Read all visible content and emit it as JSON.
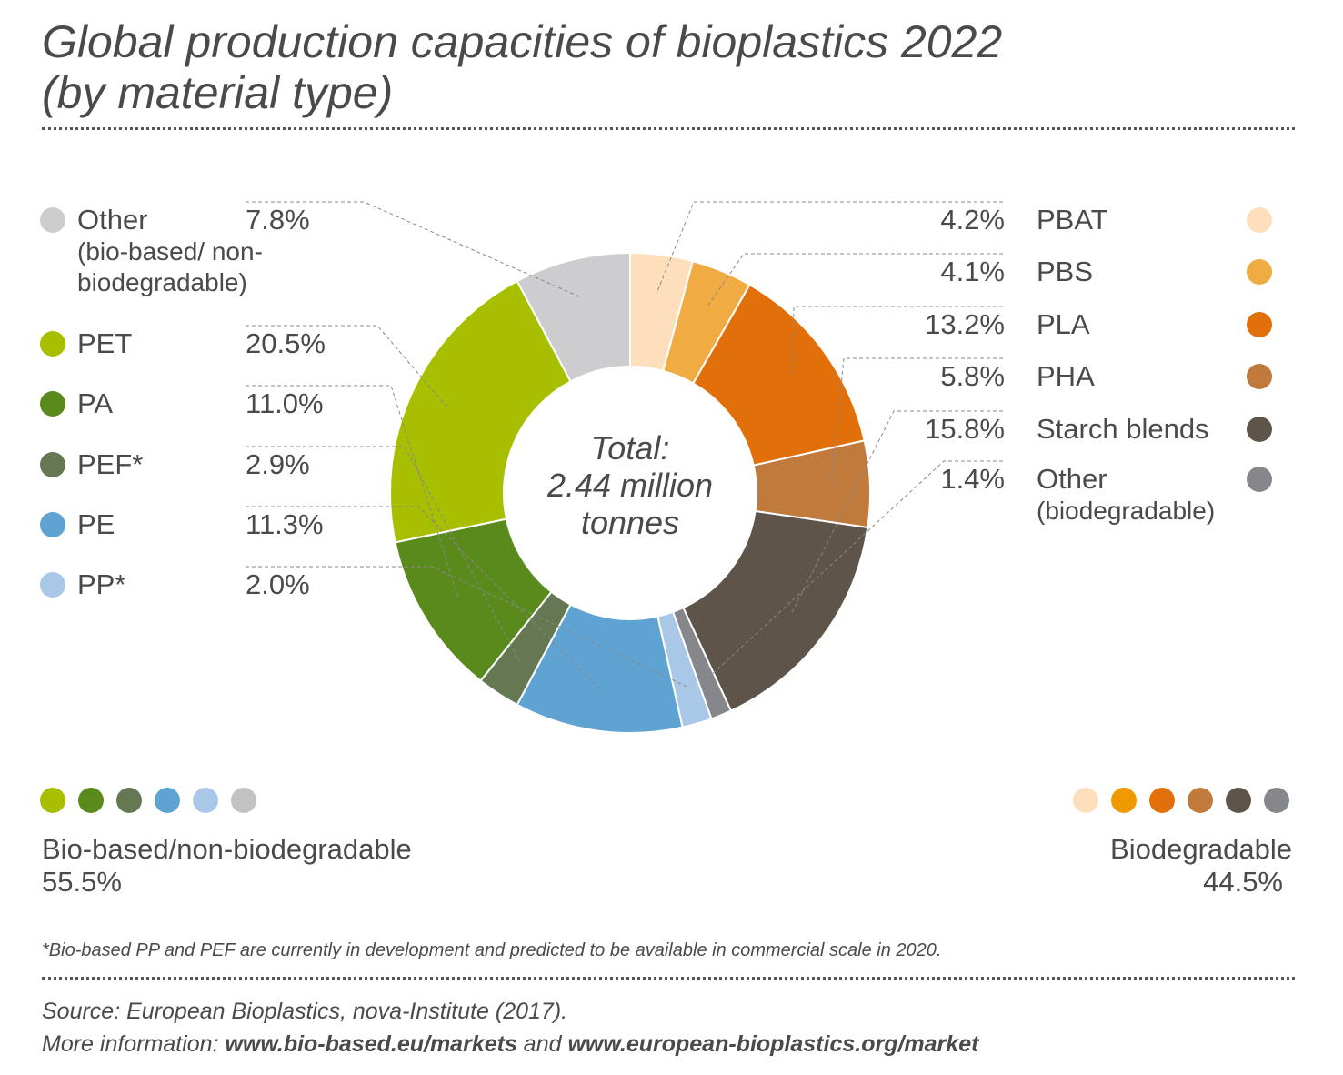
{
  "title_line1": "Global production capacities of bioplastics 2022",
  "title_line2": "(by material type)",
  "chart_data": {
    "type": "pie",
    "donut": true,
    "title": "Global production capacities of bioplastics 2022 (by material type)",
    "center_label": [
      "Total:",
      "2.44 million",
      "tonnes"
    ],
    "unit": "%",
    "slices": [
      {
        "name": "PBAT",
        "value": 4.2,
        "label": "4.2%",
        "color": "#fde0bb",
        "group": "biodegradable"
      },
      {
        "name": "PBS",
        "value": 4.1,
        "label": "4.1%",
        "color": "#f0ab43",
        "group": "biodegradable"
      },
      {
        "name": "PLA",
        "value": 13.2,
        "label": "13.2%",
        "color": "#e2700a",
        "group": "biodegradable"
      },
      {
        "name": "PHA",
        "value": 5.8,
        "label": "5.8%",
        "color": "#bf7a3c",
        "group": "biodegradable"
      },
      {
        "name": "Starch blends",
        "value": 15.8,
        "label": "15.8%",
        "color": "#5e544a",
        "group": "biodegradable"
      },
      {
        "name": "Other",
        "sub": "(biodegradable)",
        "value": 1.4,
        "label": "1.4%",
        "color": "#86878a",
        "group": "biodegradable"
      },
      {
        "name": "PP*",
        "value": 2.0,
        "label": "2.0%",
        "color": "#a9c8e8",
        "group": "bio-based"
      },
      {
        "name": "PE",
        "value": 11.3,
        "label": "11.3%",
        "color": "#5fa3d3",
        "group": "bio-based"
      },
      {
        "name": "PEF*",
        "value": 2.9,
        "label": "2.9%",
        "color": "#657853",
        "group": "bio-based"
      },
      {
        "name": "PA",
        "value": 11.0,
        "label": "11.0%",
        "color": "#5a8a1c",
        "group": "bio-based"
      },
      {
        "name": "PET",
        "value": 20.5,
        "label": "20.5%",
        "color": "#a8bf00",
        "group": "bio-based"
      },
      {
        "name": "Other",
        "sub": "(bio-based/ non-biodegradable)",
        "value": 7.8,
        "label": "7.8%",
        "color": "#cdcdcf",
        "group": "bio-based"
      }
    ],
    "groups": [
      {
        "name": "Bio-based/non-biodegradable",
        "value": "55.5%",
        "colors": [
          "#a8bf00",
          "#5a8a1c",
          "#657853",
          "#5fa3d3",
          "#a9c8e8",
          "#c2c2c2"
        ]
      },
      {
        "name": "Biodegradable",
        "value": "44.5%",
        "colors": [
          "#fde0bb",
          "#ee9a00",
          "#e2700a",
          "#bf7a3c",
          "#5e544a",
          "#86878a"
        ]
      }
    ]
  },
  "footnote": "*Bio-based PP and PEF are currently in development and predicted to be available in commercial scale in 2020.",
  "source": "Source: European Bioplastics, nova-Institute (2017).",
  "more_info_prefix": "More information: ",
  "link1": "www.bio-based.eu/markets",
  "and": " and ",
  "link2": "www.european-bioplastics.org/market"
}
